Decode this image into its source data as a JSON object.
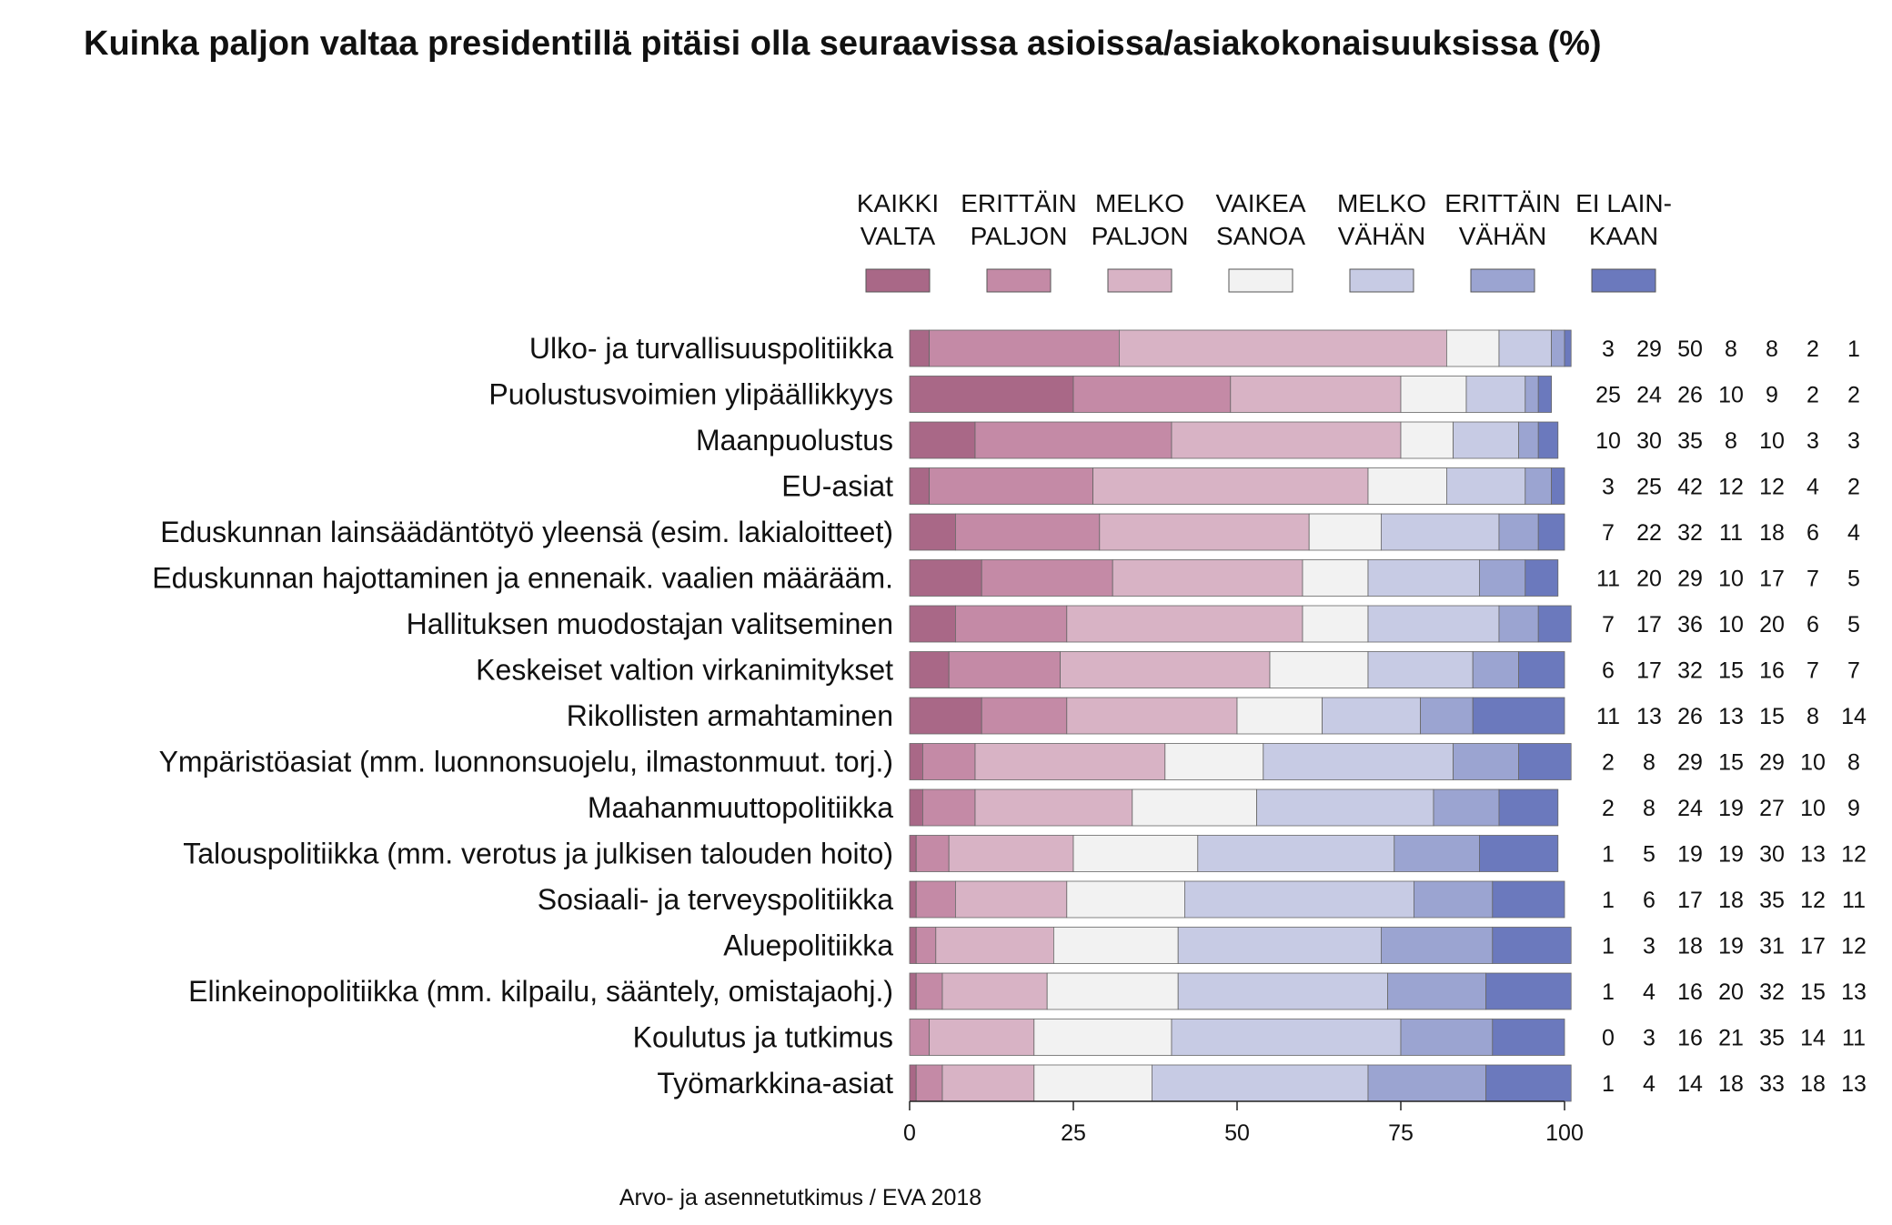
{
  "chart_data": {
    "type": "bar",
    "orientation": "horizontal",
    "stacked": true,
    "title": "Kuinka paljon valtaa presidentillä pitäisi olla seuraavissa asioissa/asiakokonaisuuksissa (%)",
    "source": "Arvo- ja asennetutkimus / EVA 2018",
    "xlim": [
      0,
      100
    ],
    "xticks": [
      "0",
      "25",
      "50",
      "75",
      "100"
    ],
    "grid": false,
    "legend_position": "top",
    "categories": [
      "Ulko- ja turvallisuuspolitiikka",
      "Puolustusvoimien ylipäällikkyys",
      "Maanpuolustus",
      "EU-asiat",
      "Eduskunnan lainsäädäntötyö yleensä (esim. lakialoitteet)",
      "Eduskunnan hajottaminen ja ennenaik. vaalien määrääm.",
      "Hallituksen muodostajan valitseminen",
      "Keskeiset valtion virkanimitykset",
      "Rikollisten armahtaminen",
      "Ympäristöasiat (mm. luonnonsuojelu, ilmastonmuut. torj.)",
      "Maahanmuuttopolitiikka",
      "Talouspolitiikka (mm. verotus ja julkisen talouden hoito)",
      "Sosiaali- ja terveyspolitiikka",
      "Aluepolitiikka",
      "Elinkeinopolitiikka (mm. kilpailu, sääntely, omistajaohj.)",
      "Koulutus ja tutkimus",
      "Työmarkkina-asiat"
    ],
    "series": [
      {
        "name": [
          "KAIKKI",
          "VALTA"
        ],
        "color": "#a96887",
        "values": [
          3,
          25,
          10,
          3,
          7,
          11,
          7,
          6,
          11,
          2,
          2,
          1,
          1,
          1,
          1,
          0,
          1
        ]
      },
      {
        "name": [
          "ERITTÄIN",
          "PALJON"
        ],
        "color": "#c48aa6",
        "values": [
          29,
          24,
          30,
          25,
          22,
          20,
          17,
          17,
          13,
          8,
          8,
          5,
          6,
          3,
          4,
          3,
          4
        ]
      },
      {
        "name": [
          "MELKO",
          "PALJON"
        ],
        "color": "#d8b3c5",
        "values": [
          50,
          26,
          35,
          42,
          32,
          29,
          36,
          32,
          26,
          29,
          24,
          19,
          17,
          18,
          16,
          16,
          14
        ]
      },
      {
        "name": [
          "VAIKEA",
          "SANOA"
        ],
        "color": "#f2f2f2",
        "values": [
          8,
          10,
          8,
          12,
          11,
          10,
          10,
          15,
          13,
          15,
          19,
          19,
          18,
          19,
          20,
          21,
          18
        ]
      },
      {
        "name": [
          "MELKO",
          "VÄHÄN"
        ],
        "color": "#c7cbe4",
        "values": [
          8,
          9,
          10,
          12,
          18,
          17,
          20,
          16,
          15,
          29,
          27,
          30,
          35,
          31,
          32,
          35,
          33
        ]
      },
      {
        "name": [
          "ERITTÄIN",
          "VÄHÄN"
        ],
        "color": "#9ba4d1",
        "values": [
          2,
          2,
          3,
          4,
          6,
          7,
          6,
          7,
          8,
          10,
          10,
          13,
          12,
          17,
          15,
          14,
          18
        ]
      },
      {
        "name": [
          "EI LAIN-",
          "KAAN"
        ],
        "color": "#6b79bd",
        "values": [
          1,
          2,
          3,
          2,
          4,
          5,
          5,
          7,
          14,
          8,
          9,
          12,
          11,
          12,
          13,
          11,
          13
        ]
      }
    ]
  }
}
